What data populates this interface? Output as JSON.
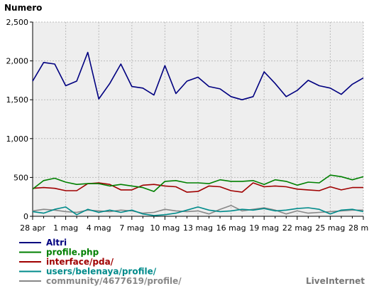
{
  "chart_data": {
    "type": "line",
    "ylabel": "Numero",
    "ylim": [
      0,
      2500
    ],
    "yticks": [
      "0",
      "500",
      "1,000",
      "1,500",
      "2,000",
      "2,500"
    ],
    "ytick_values": [
      0,
      500,
      1000,
      1500,
      2000,
      2500
    ],
    "x_tick_labels": [
      "28 apr",
      "1 mag",
      "4 mag",
      "7 mag",
      "10 mag",
      "13 mag",
      "16 mag",
      "19 mag",
      "22 mag",
      "25 mag",
      "28 mag"
    ],
    "x_tick_every": 3,
    "grid": true,
    "legend_position": "bottom-left",
    "background_color": "#eeeeee",
    "grid_color": "#bbbbbb",
    "series": [
      {
        "name": "Altri",
        "color": "#000080",
        "values": [
          1740,
          1980,
          1960,
          1680,
          1740,
          2110,
          1510,
          1710,
          1960,
          1670,
          1650,
          1560,
          1940,
          1580,
          1740,
          1790,
          1670,
          1640,
          1540,
          1500,
          1540,
          1860,
          1710,
          1540,
          1620,
          1750,
          1680,
          1650,
          1570,
          1700,
          1780
        ]
      },
      {
        "name": "profile.php",
        "color": "#008000",
        "values": [
          350,
          460,
          490,
          440,
          410,
          420,
          420,
          390,
          410,
          390,
          370,
          320,
          450,
          460,
          430,
          430,
          420,
          470,
          450,
          450,
          460,
          410,
          470,
          450,
          400,
          440,
          430,
          530,
          510,
          470,
          510
        ]
      },
      {
        "name": "interface/pda/",
        "color": "#a00000",
        "values": [
          360,
          370,
          360,
          330,
          330,
          420,
          430,
          410,
          340,
          340,
          400,
          410,
          390,
          380,
          310,
          320,
          390,
          380,
          330,
          310,
          430,
          380,
          390,
          380,
          350,
          340,
          330,
          380,
          340,
          370,
          370
        ]
      },
      {
        "name": "users/belenaya/profile/",
        "color": "#008b8b",
        "values": [
          60,
          40,
          90,
          120,
          20,
          90,
          50,
          80,
          50,
          80,
          30,
          10,
          20,
          40,
          80,
          120,
          80,
          60,
          70,
          90,
          80,
          100,
          70,
          80,
          100,
          110,
          90,
          30,
          80,
          90,
          60
        ]
      },
      {
        "name": "community/4677619/profile/",
        "color": "#888888",
        "values": [
          70,
          90,
          80,
          60,
          50,
          80,
          70,
          60,
          80,
          70,
          40,
          50,
          90,
          70,
          60,
          70,
          30,
          90,
          140,
          70,
          90,
          110,
          80,
          30,
          70,
          40,
          50,
          60,
          70,
          80,
          80
        ]
      }
    ]
  },
  "brand": "LiveInternet"
}
